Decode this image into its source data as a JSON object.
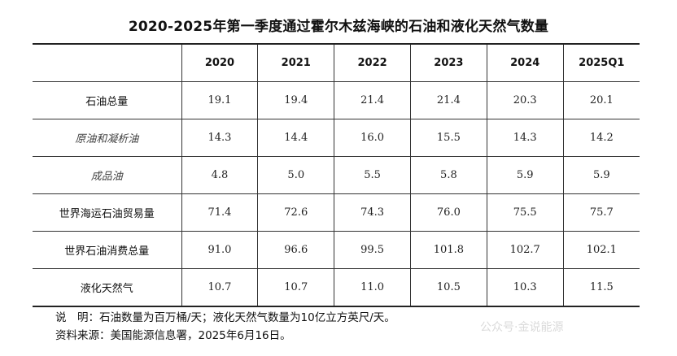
{
  "title": "2020-2025年第一季度通过霍尔木兹海峡的石油和液化天然气数量",
  "table": {
    "columns": [
      "2020",
      "2021",
      "2022",
      "2023",
      "2024",
      "2025Q1"
    ],
    "rows": [
      {
        "label": "石油总量",
        "sub": false,
        "values": [
          "19.1",
          "19.4",
          "21.4",
          "21.4",
          "20.3",
          "20.1"
        ]
      },
      {
        "label": "原油和凝析油",
        "sub": true,
        "values": [
          "14.3",
          "14.4",
          "16.0",
          "15.5",
          "14.3",
          "14.2"
        ]
      },
      {
        "label": "成品油",
        "sub": true,
        "values": [
          "4.8",
          "5.0",
          "5.5",
          "5.8",
          "5.9",
          "5.9"
        ]
      },
      {
        "label": "世界海运石油贸易量",
        "sub": false,
        "values": [
          "71.4",
          "72.6",
          "74.3",
          "76.0",
          "75.5",
          "75.7"
        ]
      },
      {
        "label": "世界石油消费总量",
        "sub": false,
        "values": [
          "91.0",
          "96.6",
          "99.5",
          "101.8",
          "102.7",
          "102.1"
        ]
      },
      {
        "label": "液化天然气",
        "sub": false,
        "values": [
          "10.7",
          "10.7",
          "11.0",
          "10.5",
          "10.3",
          "11.5"
        ]
      }
    ]
  },
  "notes": {
    "explanation": "说　明：石油数量为百万桶/天；液化天然气数量为10亿立方英尺/天。",
    "source": "资料来源：美国能源信息署，2025年6月16日。"
  },
  "watermark": "公众号·金说能源"
}
